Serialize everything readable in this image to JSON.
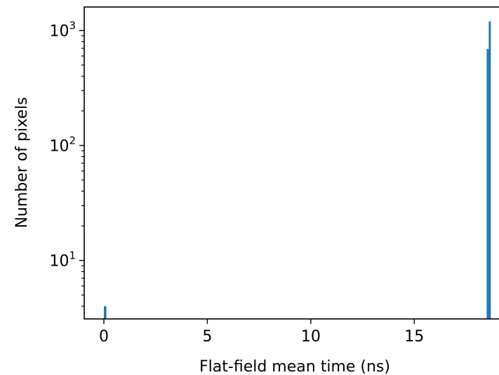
{
  "chart_data": {
    "type": "bar",
    "xlabel": "Flat-field mean time (ns)",
    "ylabel": "Number of pixels",
    "yscale": "log",
    "xlim": [
      -0.95,
      19.4
    ],
    "ylim": [
      3.1,
      1600
    ],
    "xticks": [
      {
        "value": 0,
        "label": "0"
      },
      {
        "value": 5,
        "label": "5"
      },
      {
        "value": 10,
        "label": "10"
      },
      {
        "value": 15,
        "label": "15"
      }
    ],
    "yticks": [
      {
        "value": 10,
        "base": "10",
        "exp": "1"
      },
      {
        "value": 100,
        "base": "10",
        "exp": "2"
      },
      {
        "value": 1000,
        "base": "10",
        "exp": "3"
      }
    ],
    "bars": [
      {
        "x0": 0.0,
        "x1": 0.12,
        "value": 4
      },
      {
        "x0": 18.5,
        "x1": 18.6,
        "value": 690
      },
      {
        "x0": 18.6,
        "x1": 18.7,
        "value": 1200
      }
    ],
    "bar_color": "#1f77b4",
    "grid": false,
    "legend": "none"
  }
}
